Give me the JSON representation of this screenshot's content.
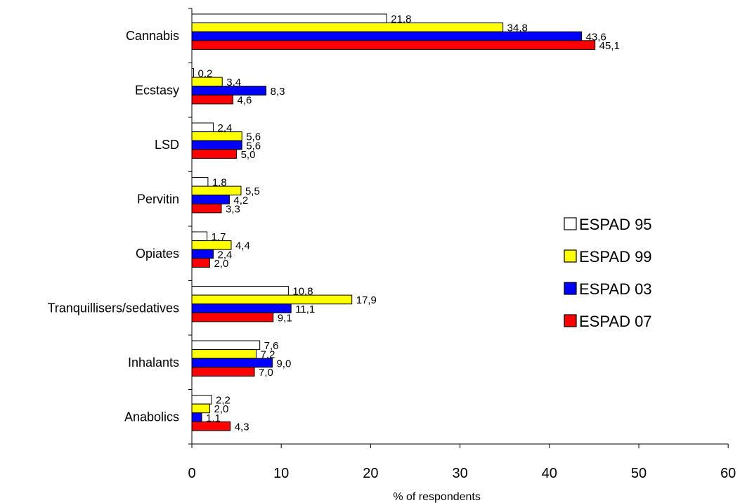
{
  "chart_data": {
    "type": "bar",
    "orientation": "horizontal",
    "title": "",
    "xlabel": "% of respondents",
    "ylabel": "",
    "xlim": [
      0,
      60
    ],
    "x_ticks": [
      0,
      10,
      20,
      30,
      40,
      50,
      60
    ],
    "grid": false,
    "legend_position": "right",
    "categories": [
      "Cannabis",
      "Ecstasy",
      "LSD",
      "Pervitin",
      "Opiates",
      "Tranquillisers/sedatives",
      "Inhalants",
      "Anabolics"
    ],
    "series": [
      {
        "name": "ESPAD 95",
        "color": "#ffffff",
        "values": [
          21.8,
          0.2,
          2.4,
          1.8,
          1.7,
          10.8,
          7.6,
          2.2
        ],
        "labels": [
          "21,8",
          "0,2",
          "2,4",
          "1,8",
          "1,7",
          "10,8",
          "7,6",
          "2,2"
        ]
      },
      {
        "name": "ESPAD 99",
        "color": "#ffff00",
        "values": [
          34.8,
          3.4,
          5.6,
          5.5,
          4.4,
          17.9,
          7.2,
          2.0
        ],
        "labels": [
          "34,8",
          "3,4",
          "5,6",
          "5,5",
          "4,4",
          "17,9",
          "7,2",
          "2,0"
        ]
      },
      {
        "name": "ESPAD 03",
        "color": "#0000ff",
        "values": [
          43.6,
          8.3,
          5.6,
          4.2,
          2.4,
          11.1,
          9.0,
          1.1
        ],
        "labels": [
          "43,6",
          "8,3",
          "5,6",
          "4,2",
          "2,4",
          "11,1",
          "9,0",
          "1,1"
        ]
      },
      {
        "name": "ESPAD 07",
        "color": "#ff0000",
        "values": [
          45.1,
          4.6,
          5.0,
          3.3,
          2.0,
          9.1,
          7.0,
          4.3
        ],
        "labels": [
          "45,1",
          "4,6",
          "5,0",
          "3,3",
          "2,0",
          "9,1",
          "7,0",
          "4,3"
        ]
      }
    ]
  }
}
